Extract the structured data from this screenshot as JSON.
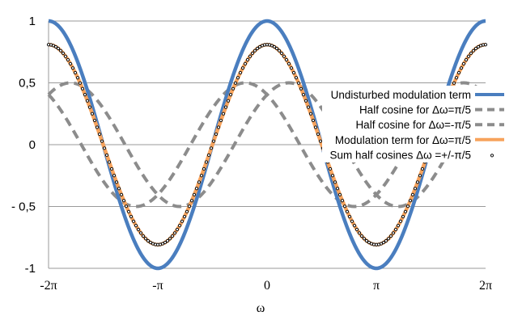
{
  "chart_data": {
    "type": "line",
    "title": "",
    "xlabel": "ω",
    "ylabel": "",
    "xlim": [
      -6.2832,
      6.2832
    ],
    "ylim": [
      -1,
      1
    ],
    "grid": "horizontal",
    "legend_placement": "right, overlaying plot",
    "x_ticks": [
      {
        "value": -6.2832,
        "label": "-2π"
      },
      {
        "value": -3.1416,
        "label": "-π"
      },
      {
        "value": 0,
        "label": "0"
      },
      {
        "value": 3.1416,
        "label": "π"
      },
      {
        "value": 6.2832,
        "label": "2π"
      }
    ],
    "y_ticks": [
      {
        "value": 1,
        "label": "1"
      },
      {
        "value": 0.5,
        "label": "0,5"
      },
      {
        "value": 0,
        "label": "0"
      },
      {
        "value": -0.5,
        "label": "- 0,5"
      },
      {
        "value": -1,
        "label": "-1"
      }
    ],
    "series": [
      {
        "name": "Undisturbed modulation term",
        "formula": "cos(ω)",
        "amplitude": 1,
        "shift": 0,
        "color": "#4a7ebf",
        "style": "solid"
      },
      {
        "name": "Half cosine for Δω=π/5",
        "formula": "0.5·cos(ω + π/5)",
        "amplitude": 0.5,
        "shift": 0.6283,
        "color": "#8c8c8c",
        "style": "dashed"
      },
      {
        "name": "Half cosine  for Δω=-π/5",
        "formula": "0.5·cos(ω − π/5)",
        "amplitude": 0.5,
        "shift": -0.6283,
        "color": "#8c8c8c",
        "style": "dashed"
      },
      {
        "name": "Modulation term for Δω=π/5",
        "formula": "cos(π/5)·cos(ω)",
        "amplitude": 0.809,
        "shift": 0,
        "color": "#f7a35c",
        "style": "solid"
      },
      {
        "name": "Sum half cosines Δω =+/-π/5",
        "formula": "0.5·cos(ω+π/5) + 0.5·cos(ω−π/5)",
        "amplitude": 0.809,
        "shift": 0,
        "color": "#111111",
        "style": "markers"
      }
    ]
  }
}
